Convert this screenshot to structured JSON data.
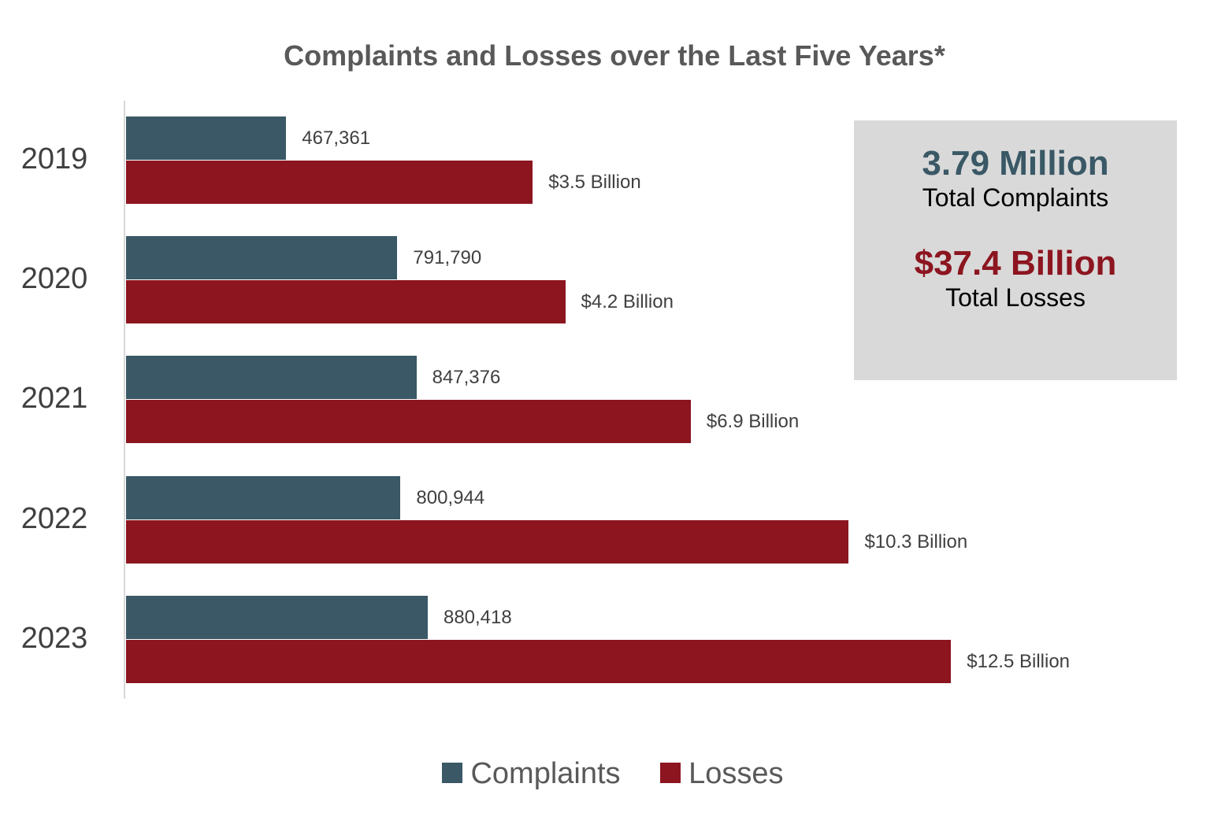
{
  "chart_data": {
    "type": "bar",
    "orientation": "horizontal",
    "title": "Complaints and Losses over the Last Five Years*",
    "categories": [
      "2019",
      "2020",
      "2021",
      "2022",
      "2023"
    ],
    "series": [
      {
        "name": "Complaints",
        "color": "#3a5866",
        "values": [
          467361,
          791790,
          847376,
          800944,
          880418
        ],
        "labels": [
          "467,361",
          "791,790",
          "847,376",
          "800,944",
          "880,418"
        ]
      },
      {
        "name": "Losses",
        "color": "#8c1520",
        "values": [
          3.5,
          4.2,
          6.9,
          10.3,
          12.5
        ],
        "unit": "Billion USD",
        "labels": [
          "$3.5 Billion",
          "$4.2 Billion",
          "$6.9 Billion",
          "$10.3 Billion",
          "$12.5 Billion"
        ]
      }
    ],
    "legend_position": "bottom",
    "grid": false,
    "xlabel": "",
    "ylabel": ""
  },
  "summary": {
    "complaints_total": "3.79 Million",
    "complaints_caption": "Total Complaints",
    "losses_total": "$37.4 Billion",
    "losses_caption": "Total Losses"
  }
}
